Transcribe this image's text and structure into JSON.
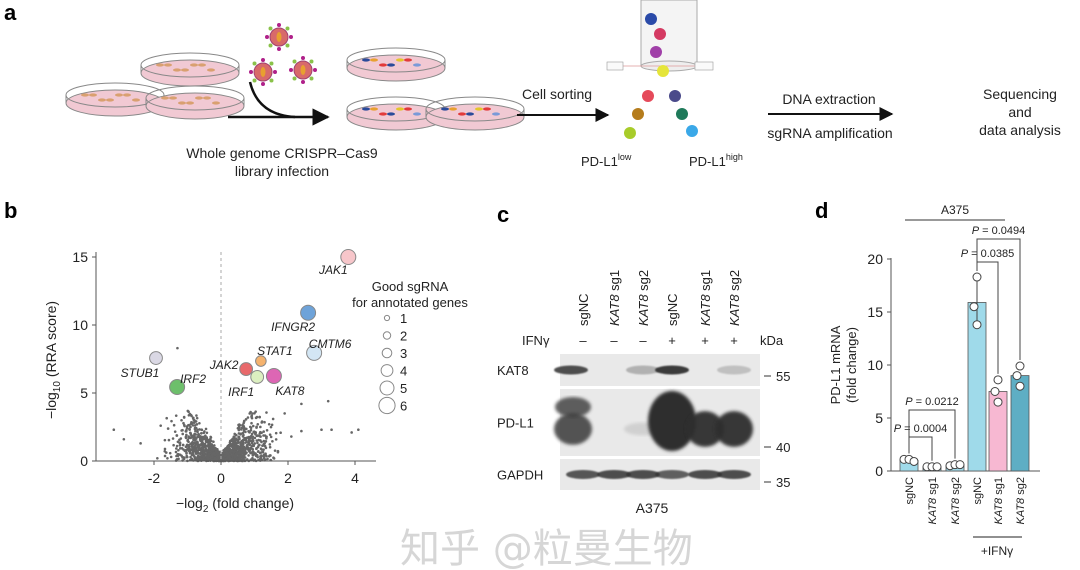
{
  "panel_labels": {
    "a": "a",
    "b": "b",
    "c": "c",
    "d": "d"
  },
  "panel_a": {
    "step1_caption_line1": "Whole genome CRISPR–Cas9",
    "step1_caption_line2": "library infection",
    "step2_label": "Cell sorting",
    "pdl1_low": {
      "base": "PD-L1",
      "sup": "low"
    },
    "pdl1_high": {
      "base": "PD-L1",
      "sup": "high"
    },
    "step3_label_top": "DNA extraction",
    "step3_label_bottom": "sgRNA amplification",
    "step4_line1": "Sequencing",
    "step4_line2": "and",
    "step4_line3": "data analysis"
  },
  "chart_data": [
    {
      "type": "scatter",
      "panel": "b",
      "xlabel": {
        "prefix": "−log",
        "sub": "2",
        "suffix": " (fold change)"
      },
      "ylabel": {
        "prefix": "−log",
        "sub": "10",
        "suffix": " (RRA score)"
      },
      "xlim": [
        -3.5,
        4.5
      ],
      "ylim": [
        0,
        15.5
      ],
      "xticks": [
        "-2",
        "0",
        "2",
        "4"
      ],
      "xtick_values": [
        -2,
        0,
        2,
        4
      ],
      "yticks": [
        "0",
        "5",
        "10",
        "15"
      ],
      "ytick_values": [
        0,
        5,
        10,
        15
      ],
      "grid": false,
      "legend": {
        "title_line1": "Good sgRNA",
        "title_line2": "for annotated genes",
        "position": "right",
        "sizes": [
          "1",
          "2",
          "3",
          "4",
          "5",
          "6"
        ]
      },
      "highlighted_genes": [
        {
          "gene": "JAK1",
          "x": 3.8,
          "y": 15.0,
          "good_sgrna": 5,
          "color": "#f7c6ca"
        },
        {
          "gene": "IFNGR2",
          "x": 2.6,
          "y": 10.9,
          "good_sgrna": 5,
          "color": "#6ea3d9"
        },
        {
          "gene": "CMTM6",
          "x": 2.78,
          "y": 7.95,
          "good_sgrna": 5,
          "color": "#d3e6f4"
        },
        {
          "gene": "STAT1",
          "x": 1.19,
          "y": 7.35,
          "good_sgrna": 3,
          "color": "#f5b36e"
        },
        {
          "gene": "JAK2",
          "x": 0.75,
          "y": 6.76,
          "good_sgrna": 4,
          "color": "#e8696b"
        },
        {
          "gene": "IRF1",
          "x": 1.08,
          "y": 6.18,
          "good_sgrna": 4,
          "color": "#dcefc0"
        },
        {
          "gene": "KAT8",
          "x": 1.58,
          "y": 6.25,
          "good_sgrna": 5,
          "color": "#dd66b4"
        },
        {
          "gene": "STUB1",
          "x": -1.94,
          "y": 7.57,
          "good_sgrna": 4,
          "color": "#dad8e4"
        },
        {
          "gene": "IRF2",
          "x": -1.31,
          "y": 5.44,
          "good_sgrna": 5,
          "color": "#6dbf6b"
        }
      ],
      "background_color": "#666666"
    },
    {
      "type": "bar",
      "panel": "d",
      "title": "A375",
      "ylabel_line1": "PD-L1 mRNA",
      "ylabel_line2": "(fold change)",
      "ylim": [
        0,
        20
      ],
      "yticks": [
        "0",
        "5",
        "10",
        "15",
        "20"
      ],
      "ytick_values": [
        0,
        5,
        10,
        15,
        20
      ],
      "categories": [
        "sgNC",
        "KAT8 sg1",
        "KAT8 sg2",
        "sgNC",
        "KAT8 sg1",
        "KAT8 sg2"
      ],
      "values": [
        1.0,
        0.4,
        0.5,
        15.9,
        7.5,
        9.0
      ],
      "error": [
        0,
        0,
        0,
        2.4,
        0,
        0
      ],
      "points": [
        [
          1.1,
          1.1,
          0.9
        ],
        [
          0.4,
          0.4,
          0.4
        ],
        [
          0.5,
          0.6,
          0.6
        ],
        [
          18.3,
          15.5,
          13.8
        ],
        [
          8.6,
          7.5,
          6.5
        ],
        [
          9.9,
          9.0,
          8.0
        ]
      ],
      "colors": [
        "#9fdaea",
        "#9fdaea",
        "#9fdaea",
        "#9fdaea",
        "#f7b8d2",
        "#5eaec4"
      ],
      "group_label": "+IFNγ",
      "comparisons": [
        {
          "from": 0,
          "to": 1,
          "label": "P = 0.0004"
        },
        {
          "from": 0,
          "to": 2,
          "label": "P = 0.0212"
        },
        {
          "from": 3,
          "to": 4,
          "label": "P = 0.0385"
        },
        {
          "from": 3,
          "to": 5,
          "label": "P = 0.0494"
        }
      ]
    }
  ],
  "panel_c": {
    "lanes": [
      "sgNC",
      "KAT8 sg1",
      "KAT8 sg2",
      "sgNC",
      "KAT8 sg1",
      "KAT8 sg2"
    ],
    "treatment_label": "IFNγ",
    "treatment": [
      "–",
      "–",
      "–",
      "+",
      "+",
      "+"
    ],
    "kda_label": "kDa",
    "rows": [
      {
        "name": "KAT8",
        "marker": "55",
        "intensity": [
          0.75,
          0,
          0.2,
          0.85,
          0,
          0.12
        ]
      },
      {
        "name": "PD-L1",
        "marker": "40",
        "intensity": [
          0.7,
          0,
          0.03,
          1.0,
          0.85,
          0.85
        ]
      },
      {
        "name": "GAPDH",
        "marker": "35",
        "intensity": [
          0.7,
          0.75,
          0.75,
          0.65,
          0.75,
          0.75
        ]
      }
    ],
    "cell_line": "A375"
  },
  "watermark": "知乎 @粒曼生物"
}
